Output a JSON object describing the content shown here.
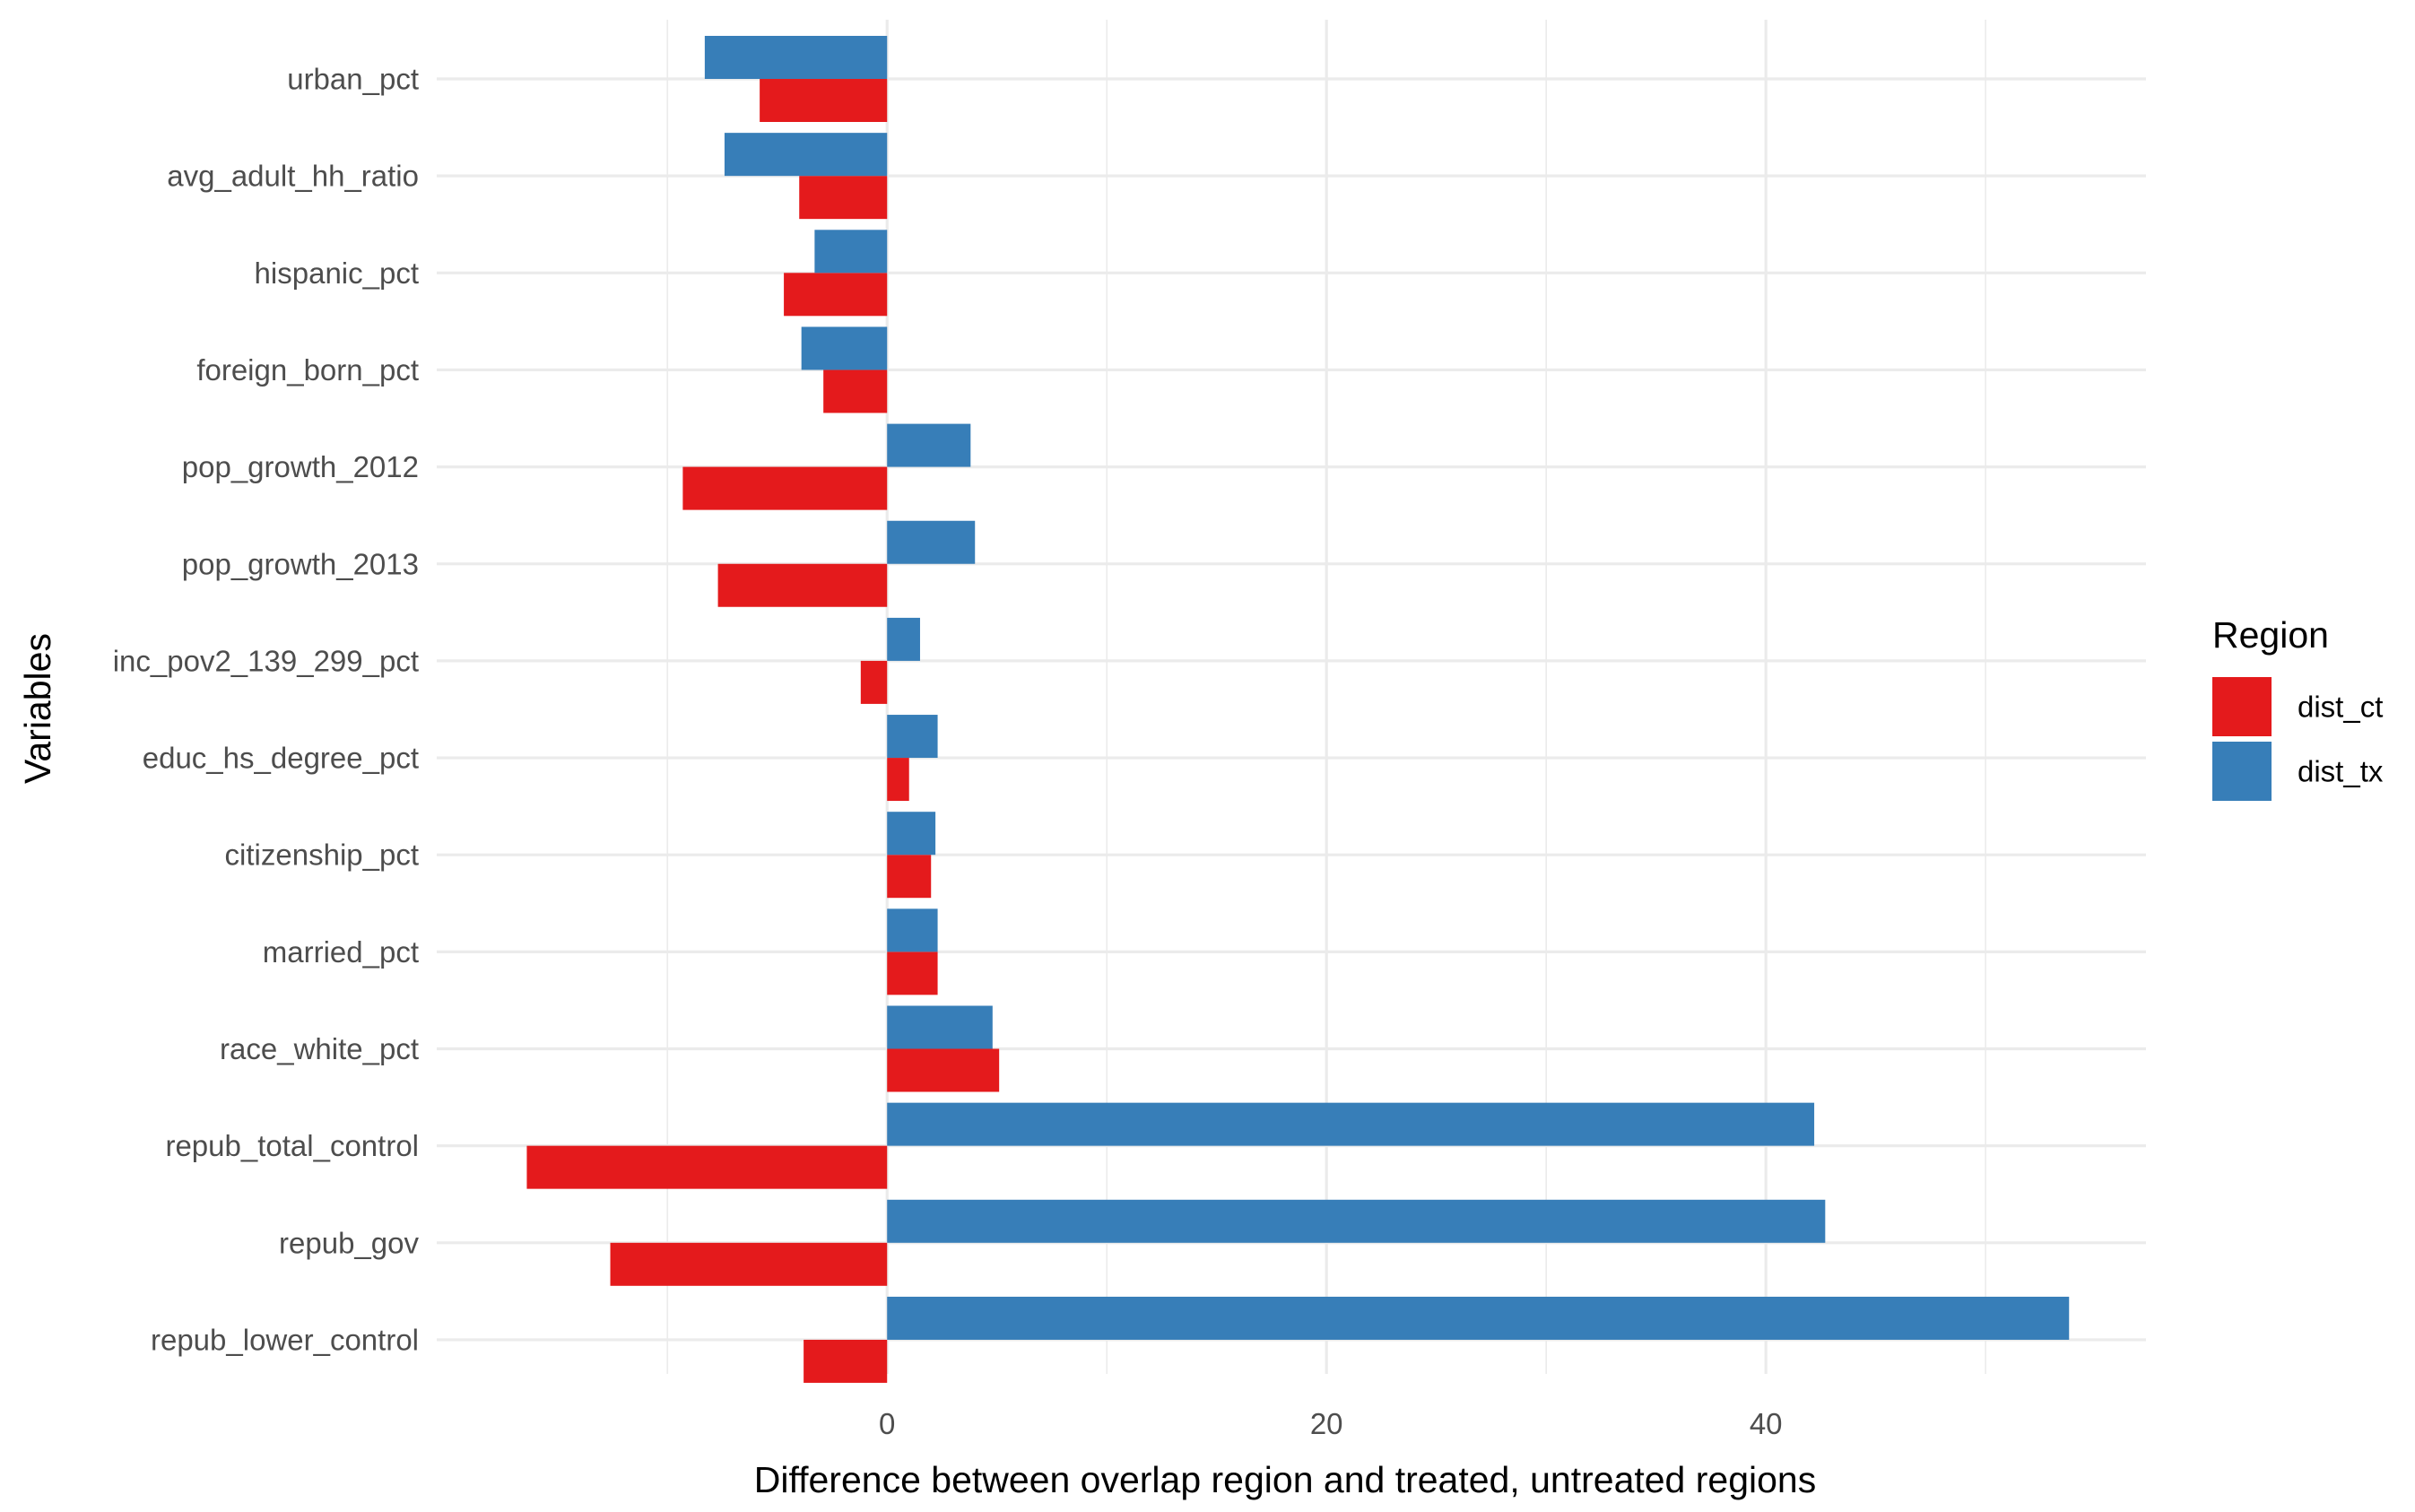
{
  "chart_data": {
    "type": "bar",
    "orientation": "horizontal",
    "title": "",
    "xlabel": "Difference between overlap region and treated, untreated regions",
    "ylabel": "Variables",
    "categories": [
      "urban_pct",
      "avg_adult_hh_ratio",
      "hispanic_pct",
      "foreign_born_pct",
      "pop_growth_2012",
      "pop_growth_2013",
      "inc_pov2_139_299_pct",
      "educ_hs_degree_pct",
      "citizenship_pct",
      "married_pct",
      "race_white_pct",
      "repub_total_control",
      "repub_gov",
      "repub_lower_control"
    ],
    "series": [
      {
        "name": "dist_ct",
        "color": "#e41a1c",
        "values": [
          -5.8,
          -4.0,
          -4.7,
          -2.9,
          -9.3,
          -7.7,
          -1.2,
          1.0,
          2.0,
          2.3,
          5.1,
          -16.4,
          -12.6,
          -3.8
        ]
      },
      {
        "name": "dist_tx",
        "color": "#377eb8",
        "values": [
          -8.3,
          -7.4,
          -3.3,
          -3.9,
          3.8,
          4.0,
          1.5,
          2.3,
          2.2,
          2.3,
          4.8,
          42.2,
          42.7,
          53.8
        ]
      }
    ],
    "xlim": [
      -20.5,
      57.3
    ],
    "xticks": [
      0,
      20,
      40
    ],
    "xgrid_minor": [
      -10,
      10,
      30,
      50
    ],
    "grid": true,
    "legend": {
      "title": "Region",
      "position": "right",
      "entries": [
        "dist_ct",
        "dist_tx"
      ]
    }
  }
}
